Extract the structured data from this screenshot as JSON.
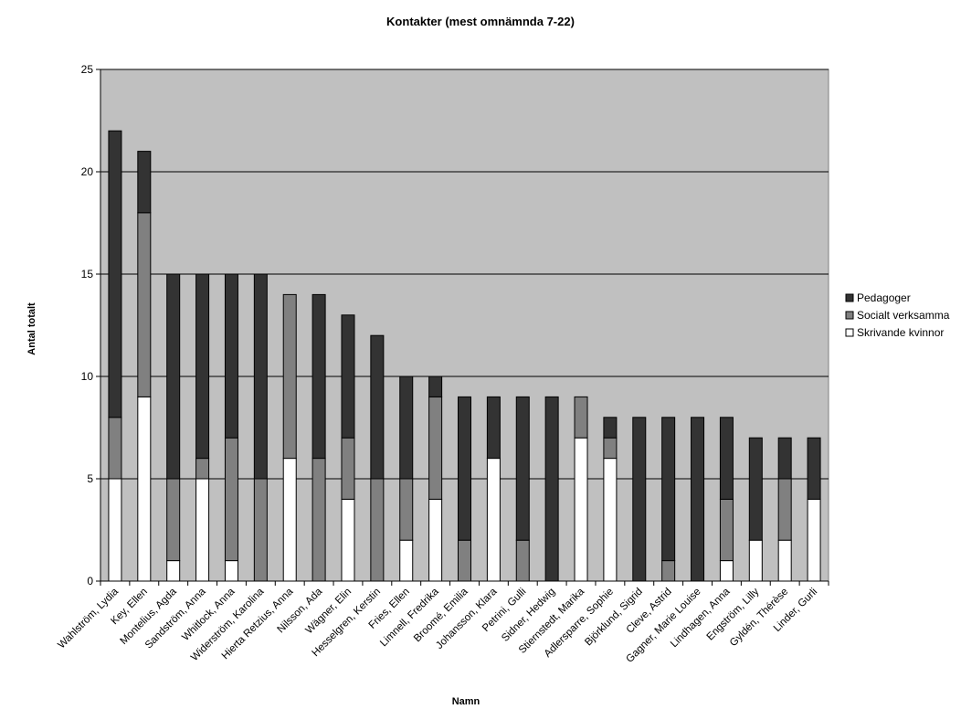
{
  "chart_data": {
    "type": "bar",
    "stacked": true,
    "title": "Kontakter (mest omnämnda 7-22)",
    "xlabel": "Namn",
    "ylabel": "Antal totalt",
    "ylim": [
      0,
      25
    ],
    "yticks": [
      0,
      5,
      10,
      15,
      20,
      25
    ],
    "grid": true,
    "legend_position": "right",
    "plot_background": "#c0c0c0",
    "categories": [
      "Wahlström, Lydia",
      "Key, Ellen",
      "Montelius, Agda",
      "Sandström, Anna",
      "Whitlock, Anna",
      "Widerström, Karolina",
      "Hierta Retzius, Anna",
      "Nilsson, Ada",
      "Wägner, Elin",
      "Hesselgren, Kerstin",
      "Fries, Ellen",
      "Limnell, Fredrika",
      "Broomé, Emilia",
      "Johansson, Klara",
      "Petrini, Gulli",
      "Sidner, Hedwig",
      "Stiernstedt, Marika",
      "Adlersparre, Sophie",
      "Björklund, Sigrid",
      "Cleve, Astrid",
      "Gagner, Marie Louise",
      "Lindhagen, Anna",
      "Engström, Lilly",
      "Gyldén, Thérèse",
      "Linder, Gurli"
    ],
    "series": [
      {
        "name": "Skrivande kvinnor",
        "color": "#ffffff",
        "values": [
          5,
          9,
          1,
          5,
          1,
          0,
          6,
          0,
          4,
          0,
          2,
          4,
          0,
          6,
          0,
          0,
          7,
          6,
          0,
          0,
          0,
          1,
          2,
          2,
          4
        ]
      },
      {
        "name": "Socialt verksamma",
        "color": "#808080",
        "values": [
          3,
          9,
          4,
          1,
          6,
          5,
          8,
          6,
          3,
          5,
          3,
          5,
          2,
          0,
          2,
          0,
          2,
          1,
          0,
          1,
          0,
          3,
          0,
          3,
          0
        ]
      },
      {
        "name": "Pedagoger",
        "color": "#333333",
        "values": [
          14,
          3,
          10,
          9,
          8,
          10,
          0,
          8,
          6,
          7,
          5,
          1,
          7,
          3,
          7,
          9,
          0,
          1,
          8,
          7,
          8,
          4,
          5,
          2,
          3
        ]
      }
    ],
    "legend_order": [
      "Pedagoger",
      "Socialt verksamma",
      "Skrivande kvinnor"
    ]
  }
}
